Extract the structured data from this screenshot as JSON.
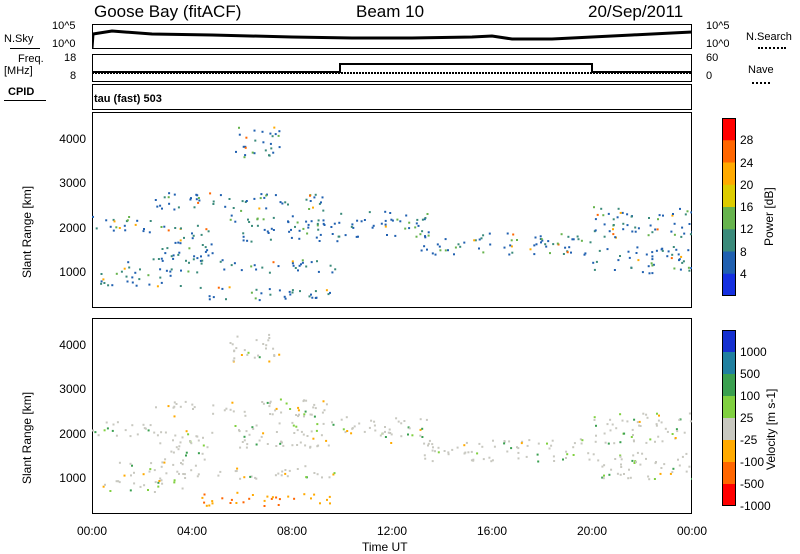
{
  "header": {
    "station": "Goose Bay (fitACF)",
    "beam": "Beam 10",
    "date": "20/Sep/2011"
  },
  "panel_labels": {
    "nsky": "N.Sky",
    "nsky_hi": "10^5",
    "nsky_lo": "10^0",
    "nsearch": "N.Search",
    "nsearch_hi": "10^5",
    "nsearch_lo": "10^0",
    "freq_label_1": "Freq.",
    "freq_label_2": "[MHz]",
    "freq_hi": "18",
    "freq_lo": "8",
    "nave": "Nave",
    "nave_hi": "60",
    "nave_lo": "0",
    "cpid": "CPID",
    "cpid_value": "tau (fast) 503"
  },
  "chart_data": [
    {
      "type": "heatmap",
      "name": "power",
      "ylabel": "Slant Range [km]",
      "yticks": [
        "4000",
        "3000",
        "2000",
        "1000"
      ],
      "ylim": [
        200,
        4600
      ],
      "colorbar_label": "Power [dB]",
      "colorbar_ticks": [
        "28",
        "24",
        "20",
        "16",
        "12",
        "8",
        "4"
      ],
      "colorbar_colors": [
        "#ff0000",
        "#ff6600",
        "#ffaa00",
        "#ddcc00",
        "#66b34d",
        "#3a8a7a",
        "#2060b0",
        "#1530e0"
      ]
    },
    {
      "type": "heatmap",
      "name": "velocity",
      "ylabel": "Slant Range [km]",
      "yticks": [
        "4000",
        "3000",
        "2000",
        "1000"
      ],
      "ylim": [
        200,
        4600
      ],
      "colorbar_label": "Velocity [m s-1]",
      "colorbar_ticks": [
        "1000",
        "500",
        "100",
        "25",
        "-25",
        "-100",
        "-500",
        "-1000"
      ],
      "colorbar_colors": [
        "#1530d0",
        "#2080a0",
        "#3aa050",
        "#80d040",
        "#c8c8c0",
        "#ffaa00",
        "#ff6600",
        "#ff0000"
      ]
    }
  ],
  "xaxis": {
    "label": "Time UT",
    "ticks": [
      "00:00",
      "04:00",
      "08:00",
      "12:00",
      "16:00",
      "20:00",
      "00:00"
    ]
  }
}
